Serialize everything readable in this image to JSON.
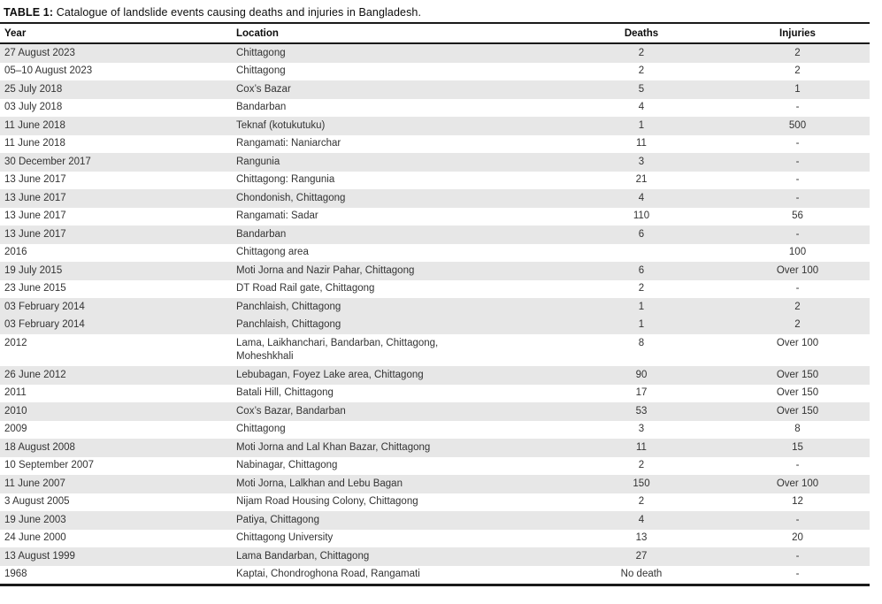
{
  "table": {
    "title_label": "TABLE 1:",
    "title_text": "Catalogue of landslide events causing deaths and injuries in Bangladesh.",
    "columns": [
      "Year",
      "Location",
      "Deaths",
      "Injuries"
    ],
    "rows": [
      {
        "year": "27 August 2023",
        "location": "Chittagong",
        "deaths": "2",
        "injuries": "2",
        "shaded": true
      },
      {
        "year": "05–10 August 2023",
        "location": "Chittagong",
        "deaths": "2",
        "injuries": "2",
        "shaded": false
      },
      {
        "year": "25 July 2018",
        "location": "Cox’s Bazar",
        "deaths": "5",
        "injuries": "1",
        "shaded": true
      },
      {
        "year": "03 July 2018",
        "location": "Bandarban",
        "deaths": "4",
        "injuries": "-",
        "shaded": false
      },
      {
        "year": "11 June 2018",
        "location": "Teknaf (kotukutuku)",
        "deaths": "1",
        "injuries": "500",
        "shaded": true
      },
      {
        "year": "11 June 2018",
        "location": "Rangamati: Naniarchar",
        "deaths": "11",
        "injuries": "-",
        "shaded": false
      },
      {
        "year": "30 December 2017",
        "location": "Rangunia",
        "deaths": "3",
        "injuries": "-",
        "shaded": true
      },
      {
        "year": "13 June 2017",
        "location": "Chittagong: Rangunia",
        "deaths": "21",
        "injuries": "-",
        "shaded": false
      },
      {
        "year": "13 June 2017",
        "location": "Chondonish, Chittagong",
        "deaths": "4",
        "injuries": "-",
        "shaded": true
      },
      {
        "year": "13 June 2017",
        "location": "Rangamati: Sadar",
        "deaths": "110",
        "injuries": "56",
        "shaded": false
      },
      {
        "year": "13 June 2017",
        "location": "Bandarban",
        "deaths": "6",
        "injuries": "-",
        "shaded": true
      },
      {
        "year": "2016",
        "location": "Chittagong area",
        "deaths": "",
        "injuries": "100",
        "shaded": false
      },
      {
        "year": "19 July 2015",
        "location": "Moti Jorna and Nazir Pahar, Chittagong",
        "deaths": "6",
        "injuries": "Over 100",
        "shaded": true
      },
      {
        "year": "23 June 2015",
        "location": "DT Road Rail gate, Chittagong",
        "deaths": "2",
        "injuries": "-",
        "shaded": false
      },
      {
        "year": "03 February 2014",
        "location": "Panchlaish, Chittagong",
        "deaths": "1",
        "injuries": "2",
        "shaded": true
      },
      {
        "year": "03 February 2014",
        "location": "Panchlaish, Chittagong",
        "deaths": "1",
        "injuries": "2",
        "shaded": true
      },
      {
        "year": "2012",
        "location": "Lama, Laikhanchari, Bandarban, Chittagong,\nMoheshkhali",
        "deaths": "8",
        "injuries": "Over 100",
        "shaded": false
      },
      {
        "year": "26 June 2012",
        "location": "Lebubagan, Foyez Lake area, Chittagong",
        "deaths": "90",
        "injuries": "Over 150",
        "shaded": true
      },
      {
        "year": "2011",
        "location": "Batali Hill, Chittagong",
        "deaths": "17",
        "injuries": "Over 150",
        "shaded": false
      },
      {
        "year": "2010",
        "location": "Cox’s Bazar, Bandarban",
        "deaths": "53",
        "injuries": "Over 150",
        "shaded": true
      },
      {
        "year": "2009",
        "location": "Chittagong",
        "deaths": "3",
        "injuries": "8",
        "shaded": false
      },
      {
        "year": "18 August 2008",
        "location": "Moti Jorna and Lal Khan Bazar, Chittagong",
        "deaths": "11",
        "injuries": "15",
        "shaded": true
      },
      {
        "year": "10 September 2007",
        "location": "Nabinagar, Chittagong",
        "deaths": "2",
        "injuries": "-",
        "shaded": false
      },
      {
        "year": "11 June 2007",
        "location": "Moti Jorna, Lalkhan and Lebu Bagan",
        "deaths": "150",
        "injuries": "Over 100",
        "shaded": true
      },
      {
        "year": "3 August 2005",
        "location": "Nijam Road Housing Colony, Chittagong",
        "deaths": "2",
        "injuries": "12",
        "shaded": false
      },
      {
        "year": "19 June 2003",
        "location": "Patiya, Chittagong",
        "deaths": "4",
        "injuries": "-",
        "shaded": true
      },
      {
        "year": "24 June 2000",
        "location": "Chittagong University",
        "deaths": "13",
        "injuries": "20",
        "shaded": false
      },
      {
        "year": "13 August 1999",
        "location": "Lama Bandarban, Chittagong",
        "deaths": "27",
        "injuries": "-",
        "shaded": true
      },
      {
        "year": "1968",
        "location": "Kaptai, Chondroghona Road, Rangamati",
        "deaths": "No death",
        "injuries": "-",
        "shaded": false
      }
    ]
  },
  "colors": {
    "stripe": "#e7e7e7",
    "rule": "#1a1a1a",
    "body_text": "#333333",
    "header_text": "#0d0d0d"
  }
}
